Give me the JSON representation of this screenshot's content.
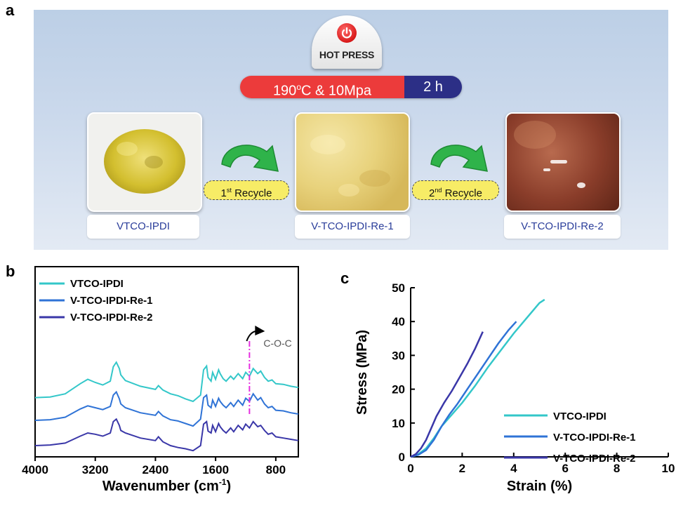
{
  "panel_a": {
    "letter": "a",
    "hot_press": "HOT PRESS",
    "condition_temp": "190",
    "condition_temp_sup": "o",
    "condition_temp_rest": "C & 10Mpa",
    "condition_time": "2 h",
    "samples": [
      "VTCO-IPDI",
      "V-TCO-IPDI-Re-1",
      "V-TCO-IPDI-Re-2"
    ],
    "recycle_1_num": "1",
    "recycle_1_sup": "st",
    "recycle_1_text": " Recycle",
    "recycle_2_num": "2",
    "recycle_2_sup": "nd",
    "recycle_2_text": " Recycle",
    "icons": [
      "power-icon",
      "curved-arrow-icon"
    ],
    "colors": {
      "temp_bar": "#ec3b3b",
      "time_bar": "#2c2f86",
      "arrow": "#2fb34a",
      "recycle_tag": "#f7ec66",
      "label_text": "#2a3d9a"
    }
  },
  "chart_data": [
    {
      "panel": "b",
      "type": "line",
      "xlabel_main": "Wavenumber (cm",
      "xlabel_sup": "-1",
      "xlabel_end": ")",
      "ylabel": "",
      "xlim": [
        4000,
        500
      ],
      "xticks": [
        "4000",
        "3200",
        "2400",
        "1600",
        "800"
      ],
      "yticks_shown": false,
      "annotation": "C-O-C",
      "annotation_x": 1150,
      "series": [
        {
          "name": "VTCO-IPDI",
          "color": "#33c7c9",
          "x": [
            4000,
            3800,
            3600,
            3400,
            3300,
            3200,
            3100,
            3000,
            2960,
            2920,
            2880,
            2860,
            2800,
            2600,
            2400,
            2360,
            2300,
            2200,
            2100,
            2000,
            1900,
            1800,
            1760,
            1720,
            1700,
            1660,
            1640,
            1600,
            1560,
            1540,
            1500,
            1460,
            1400,
            1360,
            1300,
            1240,
            1200,
            1150,
            1100,
            1040,
            1000,
            950,
            900,
            850,
            800,
            700,
            600,
            500
          ],
          "y": [
            0.26,
            0.27,
            0.32,
            0.48,
            0.55,
            0.5,
            0.46,
            0.52,
            0.75,
            0.82,
            0.72,
            0.62,
            0.53,
            0.44,
            0.39,
            0.45,
            0.38,
            0.32,
            0.29,
            0.24,
            0.2,
            0.3,
            0.7,
            0.76,
            0.58,
            0.52,
            0.66,
            0.55,
            0.7,
            0.64,
            0.56,
            0.52,
            0.6,
            0.55,
            0.64,
            0.56,
            0.66,
            0.6,
            0.72,
            0.64,
            0.68,
            0.58,
            0.52,
            0.54,
            0.48,
            0.47,
            0.44,
            0.42
          ]
        },
        {
          "name": "V-TCO-IPDI-Re-1",
          "color": "#2f73d6",
          "x": [
            4000,
            3800,
            3600,
            3400,
            3300,
            3200,
            3100,
            3000,
            2960,
            2920,
            2880,
            2860,
            2800,
            2600,
            2400,
            2360,
            2300,
            2200,
            2100,
            2000,
            1900,
            1800,
            1760,
            1720,
            1700,
            1660,
            1640,
            1600,
            1560,
            1540,
            1500,
            1460,
            1400,
            1360,
            1300,
            1240,
            1200,
            1150,
            1100,
            1040,
            1000,
            950,
            900,
            850,
            800,
            700,
            600,
            500
          ],
          "y": [
            -0.1,
            -0.09,
            -0.05,
            0.08,
            0.13,
            0.1,
            0.07,
            0.12,
            0.3,
            0.35,
            0.24,
            0.16,
            0.1,
            0.02,
            -0.02,
            0.04,
            -0.03,
            -0.09,
            -0.11,
            -0.15,
            -0.19,
            -0.08,
            0.26,
            0.3,
            0.14,
            0.1,
            0.22,
            0.12,
            0.25,
            0.2,
            0.14,
            0.1,
            0.18,
            0.12,
            0.22,
            0.14,
            0.25,
            0.2,
            0.32,
            0.22,
            0.26,
            0.16,
            0.1,
            0.12,
            0.06,
            0.05,
            0.02,
            0.0
          ]
        },
        {
          "name": "V-TCO-IPDI-Re-2",
          "color": "#3a37a8",
          "x": [
            4000,
            3800,
            3600,
            3400,
            3300,
            3200,
            3100,
            3000,
            2960,
            2920,
            2880,
            2860,
            2800,
            2600,
            2400,
            2360,
            2300,
            2200,
            2100,
            2000,
            1900,
            1800,
            1760,
            1720,
            1700,
            1660,
            1640,
            1600,
            1560,
            1540,
            1500,
            1460,
            1400,
            1360,
            1300,
            1240,
            1200,
            1150,
            1100,
            1040,
            1000,
            950,
            900,
            850,
            800,
            700,
            600,
            500
          ],
          "y": [
            -0.5,
            -0.49,
            -0.46,
            -0.35,
            -0.3,
            -0.32,
            -0.35,
            -0.3,
            -0.12,
            -0.08,
            -0.18,
            -0.26,
            -0.3,
            -0.38,
            -0.42,
            -0.36,
            -0.44,
            -0.5,
            -0.53,
            -0.55,
            -0.58,
            -0.5,
            -0.16,
            -0.12,
            -0.27,
            -0.3,
            -0.18,
            -0.28,
            -0.15,
            -0.2,
            -0.26,
            -0.3,
            -0.22,
            -0.28,
            -0.18,
            -0.25,
            -0.16,
            -0.22,
            -0.12,
            -0.2,
            -0.18,
            -0.26,
            -0.32,
            -0.3,
            -0.36,
            -0.38,
            -0.4,
            -0.42
          ]
        }
      ]
    },
    {
      "panel": "c",
      "type": "line",
      "xlabel": "Strain (%)",
      "ylabel": "Stress (MPa)",
      "xlim": [
        0,
        10
      ],
      "ylim": [
        0,
        50
      ],
      "xticks": [
        "0",
        "2",
        "4",
        "6",
        "8",
        "10"
      ],
      "yticks": [
        "0",
        "10",
        "20",
        "30",
        "40",
        "50"
      ],
      "series": [
        {
          "name": "VTCO-IPDI",
          "color": "#33c7c9",
          "x": [
            0,
            0.3,
            0.6,
            0.9,
            1.2,
            1.6,
            2.0,
            2.5,
            3.0,
            3.5,
            4.0,
            4.5,
            5.0,
            5.2
          ],
          "y": [
            0,
            0.8,
            2.5,
            5.5,
            9.0,
            12.5,
            16.0,
            21.0,
            26.5,
            31.5,
            36.5,
            41.0,
            45.5,
            46.5
          ]
        },
        {
          "name": "V-TCO-IPDI-Re-1",
          "color": "#2f73d6",
          "x": [
            0,
            0.3,
            0.6,
            0.9,
            1.2,
            1.5,
            1.8,
            2.2,
            2.6,
            3.0,
            3.4,
            3.8,
            4.1
          ],
          "y": [
            0,
            0.6,
            2.0,
            5.0,
            9.0,
            12.5,
            15.5,
            20.0,
            24.5,
            29.0,
            33.5,
            37.5,
            40.0
          ]
        },
        {
          "name": "V-TCO-IPDI-Re-2",
          "color": "#3a37a8",
          "x": [
            0,
            0.2,
            0.4,
            0.6,
            0.8,
            1.0,
            1.3,
            1.6,
            1.9,
            2.2,
            2.5,
            2.8
          ],
          "y": [
            0,
            0.8,
            2.5,
            5.0,
            8.5,
            12.0,
            16.0,
            19.5,
            23.5,
            27.5,
            32.0,
            37.0
          ]
        }
      ]
    }
  ]
}
